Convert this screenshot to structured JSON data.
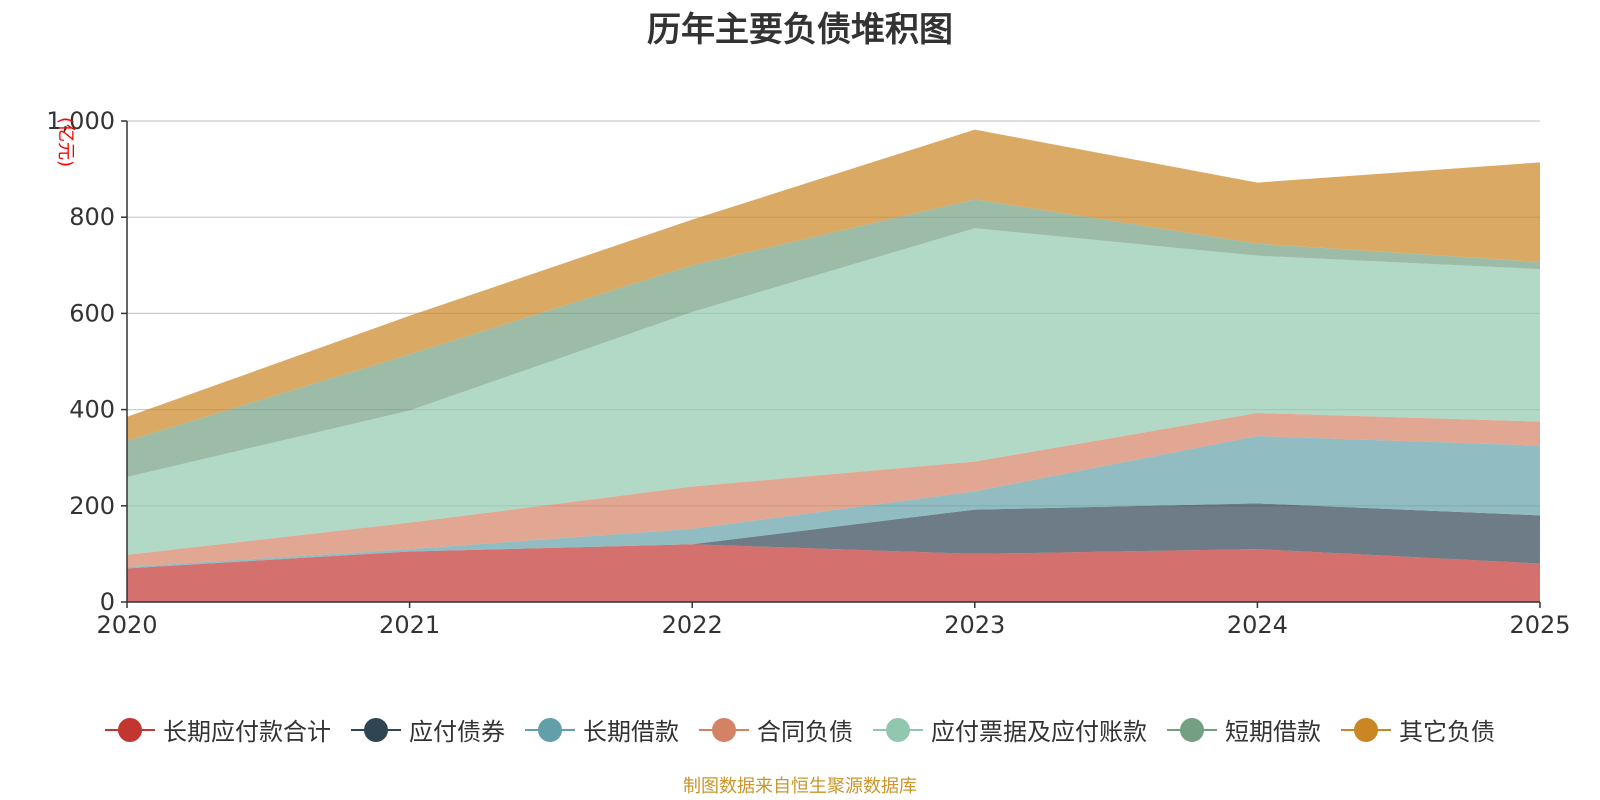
{
  "chart_data": {
    "type": "area",
    "stacked": true,
    "title": "历年主要负债堆积图",
    "ylabel": "(亿元)",
    "xlabel": "",
    "categories": [
      "2020",
      "2021",
      "2022",
      "2023",
      "2024",
      "2025"
    ],
    "ylim": [
      0,
      1000
    ],
    "yticks": [
      0,
      200,
      400,
      600,
      800,
      1000
    ],
    "ytick_labels": [
      "0",
      "200",
      "400",
      "600",
      "800",
      "1,000"
    ],
    "grid": true,
    "legend_position": "bottom",
    "series": [
      {
        "name": "长期应付款合计",
        "color": "#c23531",
        "values": [
          70,
          105,
          120,
          100,
          110,
          80
        ]
      },
      {
        "name": "应付债券",
        "color": "#2f4554",
        "values": [
          0,
          0,
          0,
          92,
          95,
          100
        ]
      },
      {
        "name": "长期借款",
        "color": "#61a0a8",
        "values": [
          3,
          5,
          32,
          38,
          140,
          145
        ]
      },
      {
        "name": "合同负债",
        "color": "#d48265",
        "values": [
          25,
          55,
          88,
          62,
          48,
          50
        ]
      },
      {
        "name": "应付票据及应付账款",
        "color": "#91c7ae",
        "values": [
          162,
          233,
          363,
          485,
          327,
          317
        ]
      },
      {
        "name": "短期借款",
        "color": "#749f83",
        "values": [
          75,
          117,
          97,
          60,
          25,
          15
        ]
      },
      {
        "name": "其它负债",
        "color": "#ca8622",
        "values": [
          50,
          80,
          95,
          145,
          127,
          207
        ]
      }
    ]
  },
  "footer": {
    "source_note": "制图数据来自恒生聚源数据库"
  }
}
